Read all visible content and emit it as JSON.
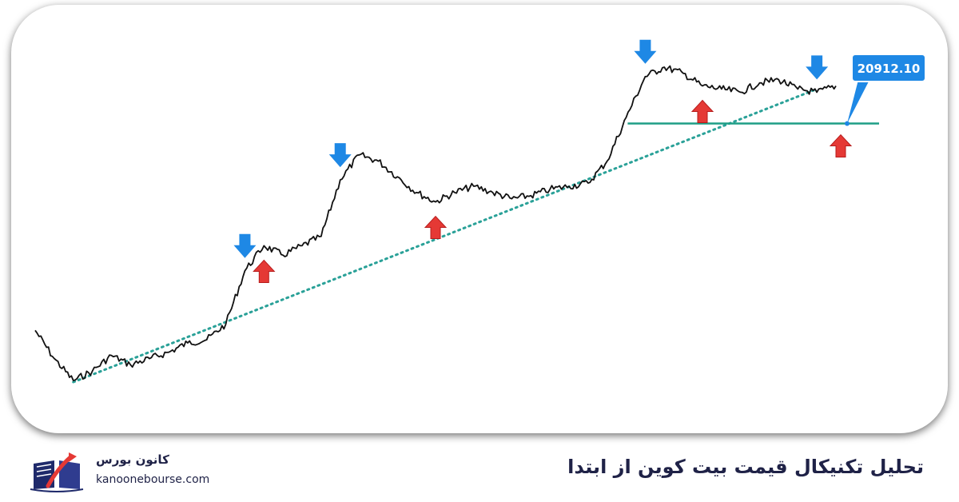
{
  "chart_data": {
    "type": "line",
    "title": "",
    "xlabel": "",
    "ylabel": "",
    "grid": false,
    "series": [
      {
        "values": [
          0.16,
          0.07,
          0.0,
          0.03,
          0.08,
          0.05,
          0.07,
          0.09,
          0.12,
          0.13,
          0.18,
          0.35,
          0.43,
          0.4,
          0.43,
          0.46,
          0.64,
          0.72,
          0.7,
          0.65,
          0.6,
          0.57,
          0.6,
          0.62,
          0.6,
          0.58,
          0.59,
          0.61,
          0.62,
          0.63,
          0.7,
          0.84,
          0.97,
          1.0,
          0.98,
          0.94,
          0.93,
          0.92,
          0.95,
          0.96,
          0.93,
          0.92,
          0.94
        ]
      }
    ],
    "price_label": "20912.10",
    "resistance_level": 0.82
  },
  "markers": {
    "peaks": [
      {
        "index": 11,
        "label": "peak-1"
      },
      {
        "index": 16,
        "label": "peak-2"
      },
      {
        "index": 32,
        "label": "peak-3"
      },
      {
        "index": 41,
        "label": "peak-4"
      }
    ],
    "troughs": [
      {
        "index": 12,
        "label": "trough-1"
      },
      {
        "index": 21,
        "label": "trough-2"
      },
      {
        "index": 35,
        "label": "trough-3"
      },
      {
        "index": 42,
        "label": "trough-4"
      }
    ],
    "colors": {
      "down_arrow": "#1e88e5",
      "up_arrow": "#e53935",
      "price_line": "#111111",
      "trendline": "#2aa198",
      "resistance": "#1e9e86",
      "price_label_bg": "#1e88e5"
    }
  },
  "footer": {
    "title": "تحلیل تکنیکال قیمت بیت کوین از ابتدا",
    "brand_name": "کانون بورس",
    "brand_site": "kanoonebourse.com",
    "logo_icon": "open-book-icon"
  }
}
